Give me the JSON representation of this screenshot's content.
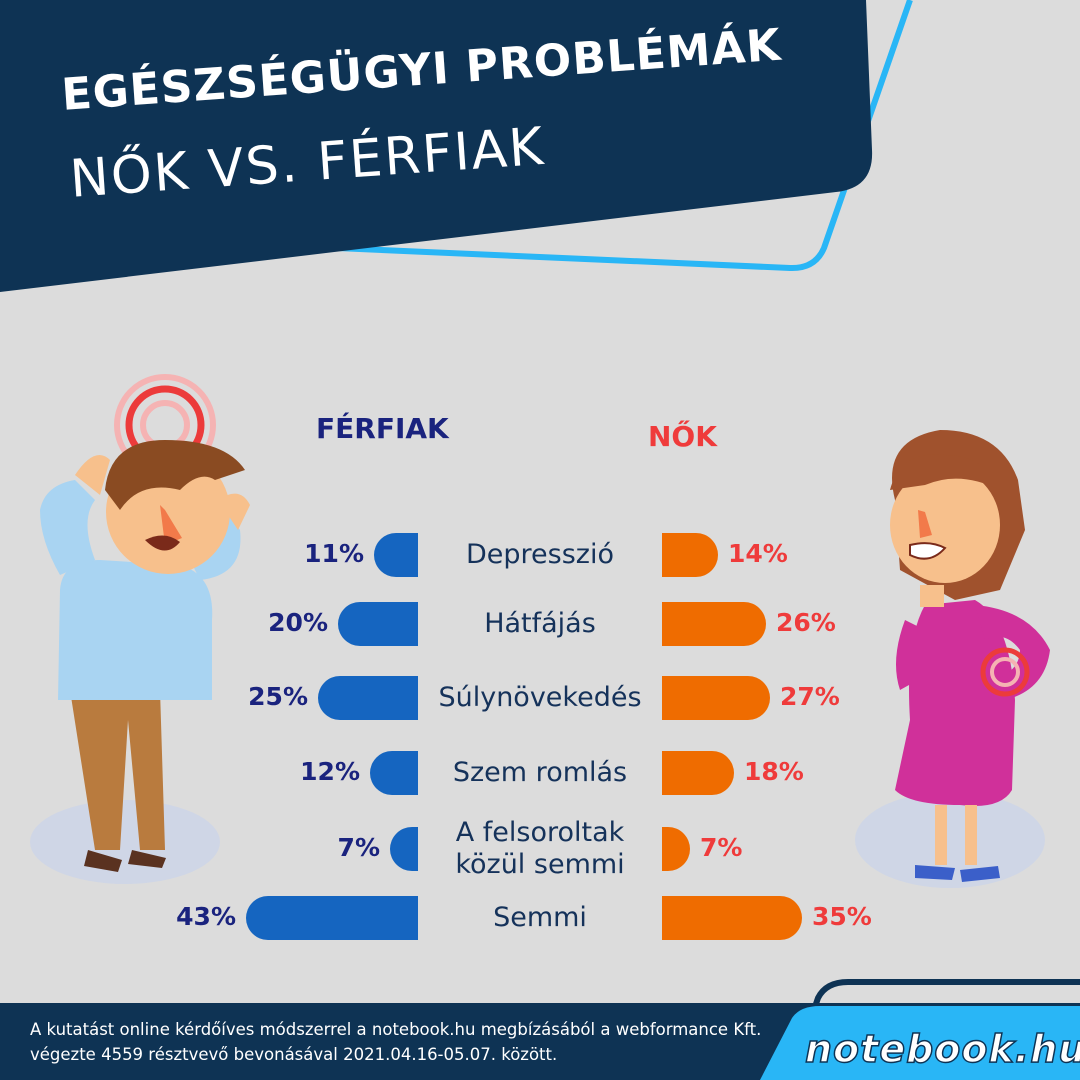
{
  "header": {
    "title_line1": "EGÉSZSÉGÜGYI PROBLÉMÁK",
    "title_line2": "NŐK VS. FÉRFIAK"
  },
  "chart_data": {
    "type": "bar",
    "categories": [
      "Depresszió",
      "Hátfájás",
      "Súlynövekedés",
      "Szem romlás",
      "A felsoroltak közül semmi",
      "Semmi"
    ],
    "category_lines": [
      [
        "Depresszió"
      ],
      [
        "Hátfájás"
      ],
      [
        "Súlynövekedés"
      ],
      [
        "Szem romlás"
      ],
      [
        "A felsoroltak",
        "közül semmi"
      ],
      [
        "Semmi"
      ]
    ],
    "series": [
      {
        "name": "FÉRFIAK",
        "values": [
          11,
          20,
          25,
          12,
          7,
          43
        ],
        "labels": [
          "11%",
          "20%",
          "25%",
          "12%",
          "7%",
          "43%"
        ],
        "color": "#1565c0",
        "text_color": "#1a237e"
      },
      {
        "name": "NŐK",
        "values": [
          14,
          26,
          27,
          18,
          7,
          35
        ],
        "labels": [
          "14%",
          "26%",
          "27%",
          "18%",
          "7%",
          "35%"
        ],
        "color": "#ef6c00",
        "text_color": "#ef3b3b"
      }
    ],
    "xlim": [
      0,
      43
    ],
    "unit": "%"
  },
  "footer": {
    "note": "A kutatást online kérdőíves módszerrel a notebook.hu megbízásából a webformance Kft. végezte 4559 résztvevő bevonásával 2021.04.16-05.07. között.",
    "logo": "notebook.hu"
  },
  "colors": {
    "background": "#dcdcdc",
    "header_navy": "#0e3354",
    "accent_cyan": "#29b6f6",
    "men_bar": "#1565c0",
    "women_bar": "#ef6c00"
  }
}
